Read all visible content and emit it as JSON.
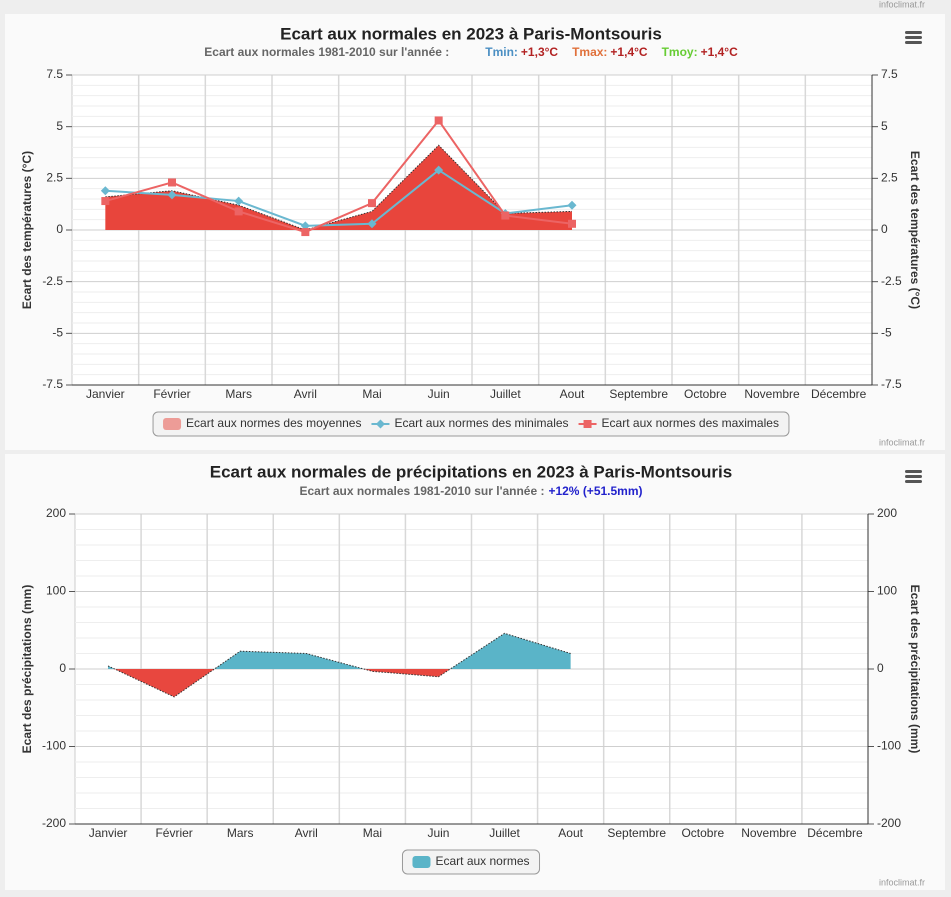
{
  "header_credit": "infoclimat.fr",
  "chart_data": [
    {
      "type": "line",
      "title": "Ecart aux normales en 2023 à Paris-Montsouris",
      "subtitle": "Ecart aux normales 1981-2010 sur l'année :",
      "annual": [
        {
          "label": "Tmin:",
          "value": "+1,3°C",
          "color": "#4b8fc3"
        },
        {
          "label": "Tmax:",
          "value": "+1,4°C",
          "color": "#e0703a"
        },
        {
          "label": "Tmoy:",
          "value": "+1,4°C",
          "color": "#66cc33"
        }
      ],
      "annual_value_color": "#b22222",
      "ylabel": "Ecart des températures (°C)",
      "y2label": "Ecart des températures (°C)",
      "categories": [
        "Janvier",
        "Février",
        "Mars",
        "Avril",
        "Mai",
        "Juin",
        "Juillet",
        "Aout",
        "Septembre",
        "Octobre",
        "Novembre",
        "Décembre"
      ],
      "ylim": [
        -7.5,
        7.5
      ],
      "yticks": [
        -7.5,
        -5,
        -2.5,
        0,
        2.5,
        5,
        7.5
      ],
      "y2lim": [
        -7.5,
        7.5
      ],
      "y2ticks": [
        -7.5,
        -5,
        -2.5,
        0,
        2.5,
        5,
        7.5
      ],
      "grid": true,
      "series": [
        {
          "name": "Ecart aux normes des moyennes",
          "type": "area",
          "color": "#e8453c",
          "values": [
            1.6,
            1.9,
            1.2,
            0,
            0.9,
            4.1,
            0.8,
            0.9,
            null,
            null,
            null,
            null
          ]
        },
        {
          "name": "Ecart aux normes des minimales",
          "type": "line",
          "marker": "diamond",
          "color": "#6ab8d0",
          "values": [
            1.9,
            1.7,
            1.4,
            0.2,
            0.3,
            2.9,
            0.8,
            1.2,
            null,
            null,
            null,
            null
          ]
        },
        {
          "name": "Ecart aux normes des maximales",
          "type": "line",
          "marker": "square",
          "color": "#ec6464",
          "values": [
            1.4,
            2.3,
            0.9,
            -0.1,
            1.3,
            5.3,
            0.7,
            0.3,
            null,
            null,
            null,
            null
          ]
        }
      ],
      "credit": "infoclimat.fr"
    },
    {
      "type": "area",
      "title": "Ecart aux normales de précipitations en 2023 à Paris-Montsouris",
      "subtitle": "Ecart aux normales 1981-2010 sur l'année :",
      "annual_value": "+12% (+51.5mm)",
      "annual_value_color": "#2222cc",
      "ylabel": "Ecart des précipitations (mm)",
      "y2label": "Ecart des précipitations (mm)",
      "categories": [
        "Janvier",
        "Février",
        "Mars",
        "Avril",
        "Mai",
        "Juin",
        "Juillet",
        "Aout",
        "Septembre",
        "Octobre",
        "Novembre",
        "Décembre"
      ],
      "ylim": [
        -200,
        200
      ],
      "yticks": [
        -200,
        -100,
        0,
        100,
        200
      ],
      "y2lim": [
        -200,
        200
      ],
      "y2ticks": [
        -200,
        -100,
        0,
        100,
        200
      ],
      "grid": true,
      "series": [
        {
          "name": "Ecart aux normes",
          "type": "area",
          "color": "#5ab4c8",
          "negative_color": "#e8473f",
          "values": [
            4,
            -36,
            23,
            20,
            -3,
            -10,
            46,
            20,
            null,
            null,
            null,
            null
          ]
        }
      ],
      "credit": "infoclimat.fr"
    }
  ]
}
